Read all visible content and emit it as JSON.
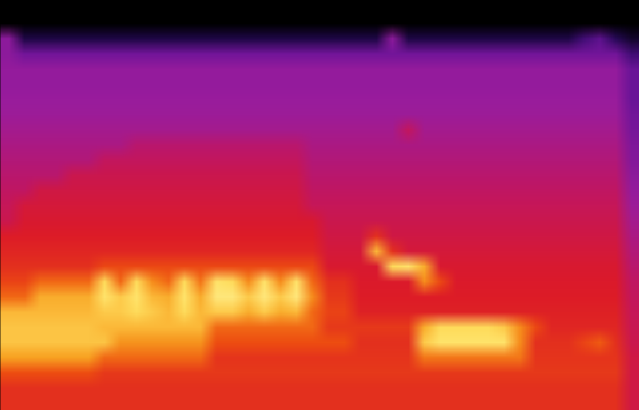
{
  "chart_data": {
    "type": "heatmap",
    "tick_labels": false,
    "zlim": [
      0,
      1
    ],
    "cells": [
      [
        0,
        0,
        0,
        0,
        0,
        0,
        0,
        0,
        0,
        0,
        0,
        0,
        0,
        0,
        0,
        0,
        0,
        0,
        0,
        0,
        0,
        0,
        0,
        0,
        0,
        0,
        0,
        0,
        0,
        0,
        0,
        0,
        0,
        0,
        0,
        0,
        0,
        0,
        0,
        0
      ],
      [
        0,
        0,
        0,
        0,
        0,
        0,
        0,
        0,
        0,
        0,
        0,
        0,
        0,
        0,
        0,
        0,
        0,
        0,
        0,
        0,
        0,
        0,
        0,
        0,
        0,
        0,
        0,
        0,
        0,
        0,
        0,
        0,
        0,
        0,
        0,
        0,
        0,
        0,
        0,
        0
      ],
      [
        0.3,
        0.08,
        0.08,
        0.08,
        0.08,
        0.08,
        0.08,
        0.08,
        0.08,
        0.08,
        0.08,
        0.08,
        0.08,
        0.08,
        0.08,
        0.08,
        0.08,
        0.08,
        0.08,
        0.08,
        0.08,
        0.08,
        0.08,
        0.08,
        0.3,
        0.08,
        0.08,
        0.08,
        0.08,
        0.08,
        0.08,
        0.08,
        0.08,
        0.08,
        0.08,
        0.08,
        0.15,
        0.2,
        0.1,
        0.05
      ],
      [
        0.3,
        0.24,
        0.24,
        0.24,
        0.24,
        0.24,
        0.24,
        0.24,
        0.24,
        0.24,
        0.24,
        0.24,
        0.24,
        0.24,
        0.24,
        0.24,
        0.24,
        0.24,
        0.24,
        0.24,
        0.24,
        0.24,
        0.24,
        0.24,
        0.24,
        0.24,
        0.24,
        0.24,
        0.24,
        0.24,
        0.24,
        0.24,
        0.24,
        0.24,
        0.24,
        0.24,
        0.24,
        0.24,
        0.24,
        0.15
      ],
      [
        0.32,
        0.32,
        0.32,
        0.32,
        0.32,
        0.32,
        0.32,
        0.32,
        0.32,
        0.32,
        0.32,
        0.32,
        0.32,
        0.32,
        0.32,
        0.32,
        0.32,
        0.32,
        0.32,
        0.32,
        0.32,
        0.32,
        0.32,
        0.32,
        0.32,
        0.32,
        0.32,
        0.32,
        0.32,
        0.32,
        0.32,
        0.32,
        0.32,
        0.32,
        0.32,
        0.32,
        0.32,
        0.32,
        0.32,
        0.22
      ],
      [
        0.32,
        0.32,
        0.32,
        0.32,
        0.32,
        0.32,
        0.32,
        0.32,
        0.32,
        0.32,
        0.32,
        0.32,
        0.32,
        0.32,
        0.32,
        0.32,
        0.32,
        0.32,
        0.32,
        0.32,
        0.32,
        0.32,
        0.32,
        0.32,
        0.32,
        0.32,
        0.32,
        0.32,
        0.32,
        0.32,
        0.32,
        0.32,
        0.32,
        0.32,
        0.32,
        0.32,
        0.32,
        0.32,
        0.32,
        0.22
      ],
      [
        0.33,
        0.33,
        0.33,
        0.33,
        0.33,
        0.33,
        0.33,
        0.33,
        0.33,
        0.33,
        0.33,
        0.33,
        0.33,
        0.33,
        0.33,
        0.33,
        0.33,
        0.33,
        0.33,
        0.33,
        0.33,
        0.33,
        0.33,
        0.33,
        0.33,
        0.33,
        0.33,
        0.33,
        0.33,
        0.33,
        0.33,
        0.33,
        0.33,
        0.33,
        0.33,
        0.33,
        0.33,
        0.33,
        0.33,
        0.22
      ],
      [
        0.34,
        0.34,
        0.34,
        0.34,
        0.34,
        0.34,
        0.34,
        0.34,
        0.34,
        0.34,
        0.34,
        0.34,
        0.34,
        0.34,
        0.34,
        0.34,
        0.34,
        0.34,
        0.34,
        0.34,
        0.34,
        0.34,
        0.34,
        0.34,
        0.34,
        0.34,
        0.34,
        0.34,
        0.34,
        0.34,
        0.34,
        0.34,
        0.34,
        0.34,
        0.34,
        0.34,
        0.34,
        0.34,
        0.34,
        0.24
      ],
      [
        0.36,
        0.36,
        0.36,
        0.36,
        0.36,
        0.36,
        0.36,
        0.36,
        0.36,
        0.36,
        0.36,
        0.36,
        0.36,
        0.36,
        0.36,
        0.36,
        0.36,
        0.36,
        0.36,
        0.36,
        0.36,
        0.36,
        0.36,
        0.36,
        0.36,
        0.45,
        0.36,
        0.36,
        0.36,
        0.36,
        0.36,
        0.36,
        0.36,
        0.36,
        0.36,
        0.36,
        0.36,
        0.36,
        0.36,
        0.25
      ],
      [
        0.38,
        0.38,
        0.38,
        0.38,
        0.38,
        0.38,
        0.38,
        0.38,
        0.42,
        0.42,
        0.42,
        0.42,
        0.42,
        0.42,
        0.42,
        0.42,
        0.42,
        0.42,
        0.42,
        0.38,
        0.38,
        0.38,
        0.38,
        0.38,
        0.38,
        0.38,
        0.38,
        0.38,
        0.38,
        0.38,
        0.38,
        0.38,
        0.38,
        0.38,
        0.38,
        0.38,
        0.38,
        0.38,
        0.38,
        0.27
      ],
      [
        0.4,
        0.4,
        0.4,
        0.4,
        0.4,
        0.4,
        0.45,
        0.45,
        0.45,
        0.45,
        0.45,
        0.45,
        0.45,
        0.45,
        0.45,
        0.45,
        0.45,
        0.45,
        0.45,
        0.4,
        0.4,
        0.4,
        0.4,
        0.4,
        0.4,
        0.4,
        0.4,
        0.4,
        0.4,
        0.4,
        0.4,
        0.4,
        0.4,
        0.4,
        0.4,
        0.4,
        0.4,
        0.4,
        0.4,
        0.28
      ],
      [
        0.42,
        0.42,
        0.42,
        0.42,
        0.48,
        0.48,
        0.48,
        0.48,
        0.48,
        0.48,
        0.48,
        0.48,
        0.48,
        0.48,
        0.48,
        0.48,
        0.48,
        0.48,
        0.48,
        0.42,
        0.42,
        0.42,
        0.42,
        0.42,
        0.42,
        0.42,
        0.42,
        0.42,
        0.42,
        0.42,
        0.42,
        0.42,
        0.42,
        0.42,
        0.42,
        0.42,
        0.42,
        0.42,
        0.42,
        0.3
      ],
      [
        0.44,
        0.44,
        0.5,
        0.5,
        0.5,
        0.5,
        0.5,
        0.5,
        0.5,
        0.5,
        0.5,
        0.5,
        0.5,
        0.5,
        0.5,
        0.5,
        0.5,
        0.5,
        0.5,
        0.44,
        0.44,
        0.44,
        0.44,
        0.44,
        0.44,
        0.44,
        0.44,
        0.44,
        0.44,
        0.44,
        0.44,
        0.44,
        0.44,
        0.44,
        0.44,
        0.44,
        0.44,
        0.44,
        0.44,
        0.32
      ],
      [
        0.46,
        0.52,
        0.52,
        0.52,
        0.52,
        0.52,
        0.52,
        0.52,
        0.52,
        0.52,
        0.52,
        0.52,
        0.52,
        0.52,
        0.52,
        0.52,
        0.52,
        0.52,
        0.52,
        0.46,
        0.46,
        0.46,
        0.46,
        0.46,
        0.46,
        0.46,
        0.46,
        0.46,
        0.46,
        0.46,
        0.46,
        0.46,
        0.46,
        0.46,
        0.46,
        0.46,
        0.46,
        0.46,
        0.46,
        0.34
      ],
      [
        0.48,
        0.54,
        0.54,
        0.54,
        0.54,
        0.54,
        0.54,
        0.54,
        0.54,
        0.54,
        0.54,
        0.54,
        0.54,
        0.54,
        0.54,
        0.54,
        0.54,
        0.54,
        0.54,
        0.54,
        0.48,
        0.48,
        0.48,
        0.48,
        0.48,
        0.48,
        0.48,
        0.48,
        0.48,
        0.48,
        0.48,
        0.48,
        0.48,
        0.48,
        0.48,
        0.48,
        0.48,
        0.48,
        0.48,
        0.36
      ],
      [
        0.56,
        0.56,
        0.56,
        0.56,
        0.56,
        0.56,
        0.56,
        0.56,
        0.56,
        0.56,
        0.56,
        0.56,
        0.56,
        0.56,
        0.56,
        0.56,
        0.56,
        0.56,
        0.56,
        0.56,
        0.5,
        0.5,
        0.5,
        0.6,
        0.5,
        0.5,
        0.5,
        0.5,
        0.5,
        0.5,
        0.5,
        0.5,
        0.5,
        0.5,
        0.5,
        0.5,
        0.5,
        0.5,
        0.5,
        0.38
      ],
      [
        0.58,
        0.58,
        0.58,
        0.58,
        0.58,
        0.58,
        0.58,
        0.58,
        0.58,
        0.58,
        0.58,
        0.58,
        0.58,
        0.58,
        0.58,
        0.58,
        0.58,
        0.58,
        0.58,
        0.58,
        0.52,
        0.52,
        0.52,
        0.82,
        0.6,
        0.52,
        0.52,
        0.52,
        0.52,
        0.52,
        0.52,
        0.52,
        0.52,
        0.52,
        0.52,
        0.52,
        0.52,
        0.52,
        0.52,
        0.4
      ],
      [
        0.6,
        0.6,
        0.6,
        0.6,
        0.6,
        0.6,
        0.65,
        0.65,
        0.65,
        0.65,
        0.65,
        0.65,
        0.65,
        0.65,
        0.65,
        0.65,
        0.65,
        0.65,
        0.65,
        0.65,
        0.54,
        0.54,
        0.54,
        0.54,
        0.88,
        0.9,
        0.8,
        0.54,
        0.54,
        0.54,
        0.54,
        0.54,
        0.54,
        0.54,
        0.54,
        0.54,
        0.54,
        0.54,
        0.54,
        0.42
      ],
      [
        0.64,
        0.64,
        0.7,
        0.7,
        0.7,
        0.7,
        0.88,
        0.7,
        0.88,
        0.75,
        0.7,
        0.88,
        0.72,
        0.9,
        0.88,
        0.75,
        0.9,
        0.75,
        0.9,
        0.7,
        0.6,
        0.6,
        0.55,
        0.55,
        0.55,
        0.55,
        0.75,
        0.65,
        0.55,
        0.55,
        0.55,
        0.55,
        0.55,
        0.55,
        0.55,
        0.55,
        0.55,
        0.55,
        0.55,
        0.44
      ],
      [
        0.7,
        0.7,
        0.8,
        0.8,
        0.8,
        0.8,
        0.9,
        0.85,
        0.9,
        0.82,
        0.8,
        0.9,
        0.8,
        0.92,
        0.92,
        0.85,
        0.92,
        0.85,
        0.92,
        0.75,
        0.62,
        0.62,
        0.56,
        0.56,
        0.56,
        0.56,
        0.56,
        0.56,
        0.56,
        0.56,
        0.56,
        0.56,
        0.56,
        0.56,
        0.56,
        0.56,
        0.56,
        0.56,
        0.56,
        0.45
      ],
      [
        0.82,
        0.82,
        0.82,
        0.82,
        0.82,
        0.82,
        0.85,
        0.85,
        0.88,
        0.85,
        0.82,
        0.88,
        0.82,
        0.85,
        0.85,
        0.8,
        0.85,
        0.8,
        0.82,
        0.7,
        0.64,
        0.64,
        0.57,
        0.57,
        0.57,
        0.57,
        0.57,
        0.57,
        0.57,
        0.57,
        0.57,
        0.57,
        0.57,
        0.57,
        0.57,
        0.57,
        0.57,
        0.57,
        0.57,
        0.46
      ],
      [
        0.84,
        0.84,
        0.84,
        0.84,
        0.84,
        0.84,
        0.82,
        0.82,
        0.82,
        0.82,
        0.82,
        0.82,
        0.82,
        0.7,
        0.7,
        0.7,
        0.7,
        0.7,
        0.7,
        0.7,
        0.62,
        0.62,
        0.62,
        0.62,
        0.62,
        0.62,
        0.8,
        0.88,
        0.88,
        0.88,
        0.88,
        0.85,
        0.75,
        0.65,
        0.58,
        0.58,
        0.58,
        0.58,
        0.58,
        0.47
      ],
      [
        0.84,
        0.84,
        0.84,
        0.84,
        0.84,
        0.84,
        0.84,
        0.76,
        0.76,
        0.76,
        0.76,
        0.76,
        0.76,
        0.66,
        0.66,
        0.66,
        0.66,
        0.66,
        0.66,
        0.66,
        0.66,
        0.66,
        0.6,
        0.6,
        0.6,
        0.6,
        0.85,
        0.9,
        0.9,
        0.9,
        0.9,
        0.9,
        0.75,
        0.6,
        0.6,
        0.6,
        0.64,
        0.68,
        0.6,
        0.48
      ],
      [
        0.78,
        0.78,
        0.78,
        0.78,
        0.78,
        0.78,
        0.7,
        0.7,
        0.7,
        0.7,
        0.7,
        0.7,
        0.7,
        0.61,
        0.61,
        0.61,
        0.61,
        0.61,
        0.61,
        0.61,
        0.61,
        0.61,
        0.61,
        0.61,
        0.61,
        0.61,
        0.72,
        0.72,
        0.72,
        0.72,
        0.72,
        0.72,
        0.72,
        0.61,
        0.61,
        0.61,
        0.61,
        0.61,
        0.61,
        0.5
      ],
      [
        0.66,
        0.66,
        0.66,
        0.66,
        0.66,
        0.66,
        0.62,
        0.62,
        0.62,
        0.62,
        0.62,
        0.62,
        0.62,
        0.62,
        0.62,
        0.62,
        0.62,
        0.62,
        0.62,
        0.62,
        0.62,
        0.62,
        0.62,
        0.62,
        0.62,
        0.62,
        0.62,
        0.62,
        0.62,
        0.62,
        0.62,
        0.62,
        0.62,
        0.62,
        0.62,
        0.62,
        0.62,
        0.62,
        0.62,
        0.5
      ],
      [
        0.6,
        0.6,
        0.6,
        0.6,
        0.6,
        0.6,
        0.6,
        0.6,
        0.6,
        0.6,
        0.6,
        0.6,
        0.6,
        0.6,
        0.6,
        0.6,
        0.6,
        0.6,
        0.6,
        0.6,
        0.6,
        0.6,
        0.6,
        0.6,
        0.6,
        0.6,
        0.6,
        0.6,
        0.6,
        0.6,
        0.6,
        0.6,
        0.6,
        0.6,
        0.6,
        0.6,
        0.6,
        0.6,
        0.6,
        0.5
      ],
      [
        0.6,
        0.6,
        0.6,
        0.6,
        0.6,
        0.6,
        0.6,
        0.6,
        0.6,
        0.6,
        0.6,
        0.6,
        0.6,
        0.6,
        0.6,
        0.6,
        0.6,
        0.6,
        0.6,
        0.6,
        0.6,
        0.6,
        0.6,
        0.6,
        0.6,
        0.6,
        0.6,
        0.6,
        0.6,
        0.6,
        0.6,
        0.6,
        0.6,
        0.6,
        0.6,
        0.6,
        0.6,
        0.6,
        0.6,
        0.5
      ]
    ]
  }
}
